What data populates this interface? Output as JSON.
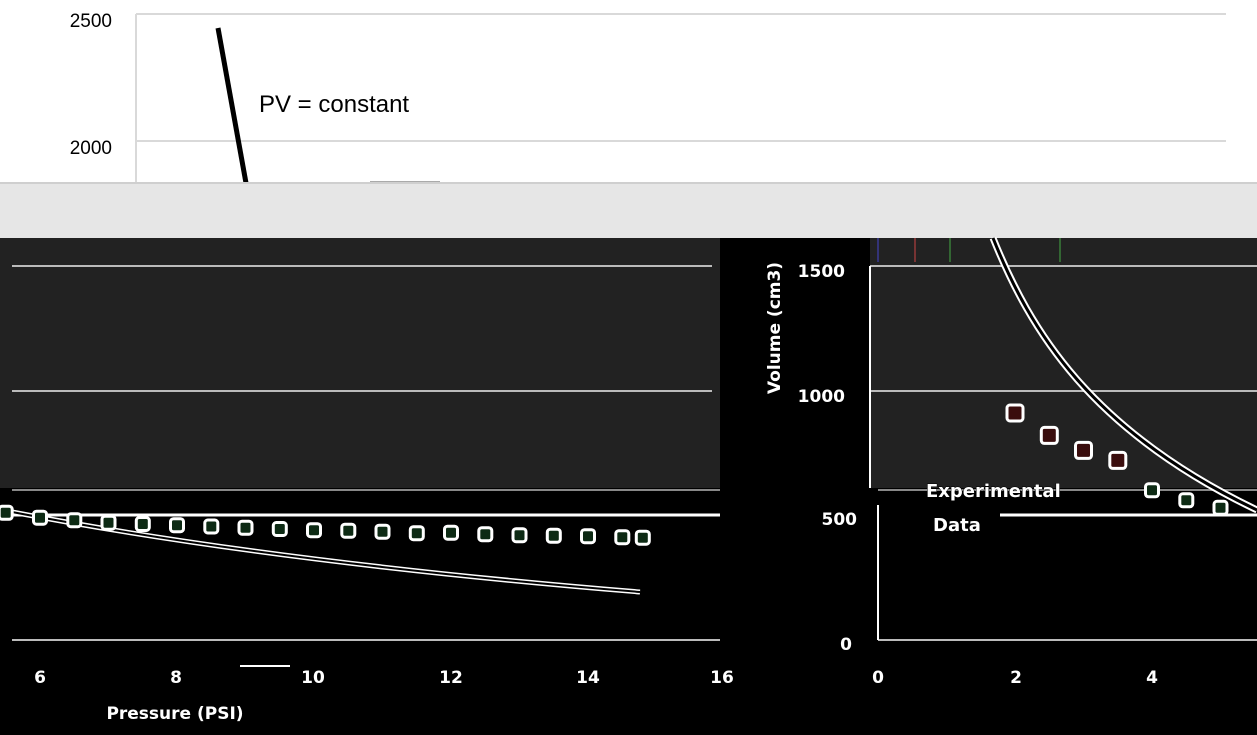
{
  "chart_data": [
    {
      "type": "line",
      "panel": "upper",
      "yticks": [
        "2500",
        "2000"
      ],
      "ylim": [
        1750,
        2500
      ],
      "annotation": "PV = constant",
      "grid": true
    },
    {
      "type": "scatter",
      "panel": "lower",
      "ylabel": "Volume (cm3)",
      "xlabel": "Pressure (PSI)",
      "yticks": [
        "1500",
        "1000",
        "500",
        "0"
      ],
      "xticks": [
        "6",
        "8",
        "10",
        "12",
        "14",
        "16",
        "0",
        "2",
        "4"
      ],
      "legend": [
        "Experimental",
        "Data"
      ],
      "grid": true,
      "series": [
        {
          "name": "Experimental Data",
          "points": [
            {
              "x": 2.0,
              "y": 910
            },
            {
              "x": 2.5,
              "y": 820
            },
            {
              "x": 3.0,
              "y": 760
            },
            {
              "x": 3.5,
              "y": 720
            },
            {
              "x": 4.0,
              "y": 600
            },
            {
              "x": 4.5,
              "y": 560
            },
            {
              "x": 5.0,
              "y": 530
            },
            {
              "x": 5.5,
              "y": 510
            },
            {
              "x": 6.0,
              "y": 490
            },
            {
              "x": 6.5,
              "y": 480
            },
            {
              "x": 7.0,
              "y": 470
            },
            {
              "x": 7.5,
              "y": 465
            },
            {
              "x": 8.0,
              "y": 460
            },
            {
              "x": 8.5,
              "y": 455
            },
            {
              "x": 9.0,
              "y": 450
            },
            {
              "x": 9.5,
              "y": 445
            },
            {
              "x": 10.0,
              "y": 440
            },
            {
              "x": 10.5,
              "y": 438
            },
            {
              "x": 11.0,
              "y": 434
            },
            {
              "x": 11.5,
              "y": 428
            },
            {
              "x": 12.0,
              "y": 430
            },
            {
              "x": 12.5,
              "y": 424
            },
            {
              "x": 13.0,
              "y": 420
            },
            {
              "x": 13.5,
              "y": 418
            },
            {
              "x": 14.0,
              "y": 416
            },
            {
              "x": 14.5,
              "y": 412
            },
            {
              "x": 14.8,
              "y": 410
            }
          ]
        }
      ]
    }
  ]
}
